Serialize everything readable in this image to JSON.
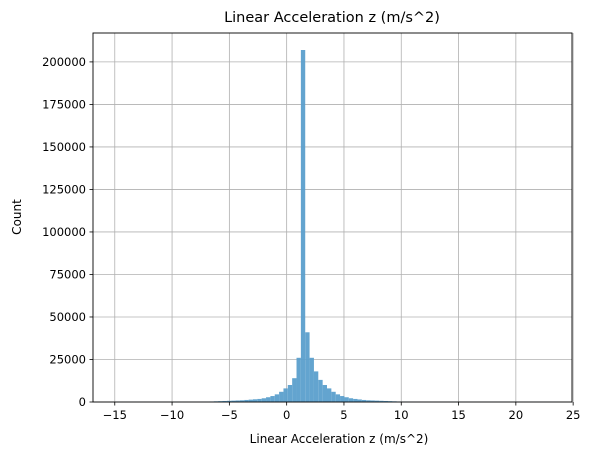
{
  "chart_data": {
    "type": "bar",
    "title": "Linear Acceleration z (m/s^2)",
    "xlabel": "Linear Acceleration z (m/s^2)",
    "ylabel": "Count",
    "xlim": [
      -16.9,
      24.9
    ],
    "ylim": [
      0,
      217000
    ],
    "x_ticks": [
      -15,
      -10,
      -5,
      0,
      5,
      10,
      15,
      20,
      25
    ],
    "x_tick_labels": [
      "−15",
      "−10",
      "−5",
      "0",
      "5",
      "10",
      "15",
      "20",
      "25"
    ],
    "y_ticks": [
      0,
      25000,
      50000,
      75000,
      100000,
      125000,
      150000,
      175000,
      200000
    ],
    "y_tick_labels": [
      "0",
      "25000",
      "50000",
      "75000",
      "100000",
      "125000",
      "150000",
      "175000",
      "200000"
    ],
    "grid": true,
    "bar_color": "#5b9fcc",
    "bin_width": 0.38,
    "bin_start": -15.1,
    "values": [
      50,
      50,
      50,
      50,
      50,
      50,
      50,
      50,
      50,
      50,
      50,
      50,
      50,
      50,
      50,
      50,
      50,
      50,
      50,
      80,
      120,
      200,
      300,
      400,
      500,
      600,
      700,
      800,
      900,
      1000,
      1200,
      1400,
      1600,
      1800,
      2200,
      2800,
      3500,
      4500,
      6000,
      8000,
      10000,
      14000,
      26000,
      207000,
      41000,
      26000,
      18000,
      13000,
      10000,
      8000,
      6000,
      4500,
      3500,
      2800,
      2200,
      1800,
      1500,
      1200,
      1000,
      900,
      800,
      700,
      600,
      500,
      400,
      300,
      200,
      150,
      120,
      100,
      80,
      60,
      50,
      50,
      50,
      50,
      50,
      50,
      50,
      50,
      50,
      50,
      50,
      50,
      50,
      50,
      50,
      50,
      50,
      50,
      50,
      50,
      50,
      50,
      50,
      50,
      50,
      50,
      50,
      50,
      50,
      50
    ]
  }
}
